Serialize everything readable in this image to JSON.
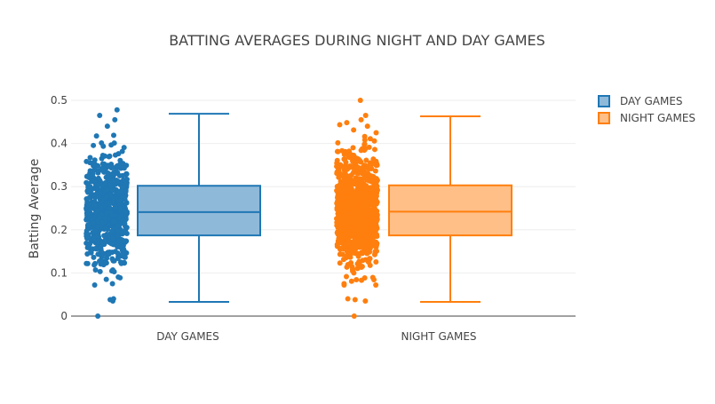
{
  "chart_data": {
    "type": "box",
    "title": "BATTING AVERAGES DURING NIGHT AND DAY GAMES",
    "xlabel": "",
    "ylabel": "Batting Average",
    "ylim": [
      0,
      0.5
    ],
    "yticks": [
      0,
      0.1,
      0.2,
      0.3,
      0.4,
      0.5
    ],
    "ytick_labels": [
      "0",
      "0.1",
      "0.2",
      "0.3",
      "0.4",
      "0.5"
    ],
    "categories": [
      "DAY GAMES",
      "NIGHT GAMES"
    ],
    "legend_position": "top-right",
    "grid": true,
    "series": [
      {
        "name": "DAY GAMES",
        "color": "#1f77b4",
        "fill": "#8fb9d9",
        "whisker_low": 0.033,
        "q1": 0.187,
        "median": 0.241,
        "q3": 0.302,
        "whisker_high": 0.469,
        "points_min": 0,
        "points_max": 0.478
      },
      {
        "name": "NIGHT GAMES",
        "color": "#ff7f0e",
        "fill": "#ffbf87",
        "whisker_low": 0.033,
        "q1": 0.187,
        "median": 0.242,
        "q3": 0.303,
        "whisker_high": 0.463,
        "points_min": 0,
        "points_max": 0.5
      }
    ]
  }
}
